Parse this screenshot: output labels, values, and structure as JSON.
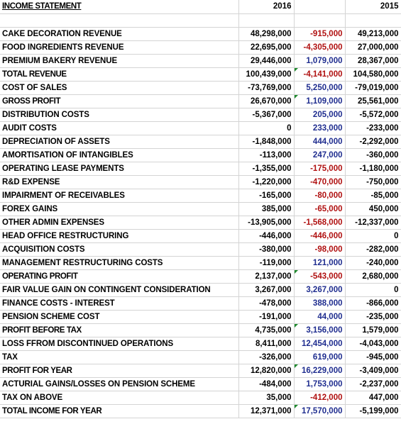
{
  "sheet": {
    "title": "INCOME STATEMENT",
    "col_2016": "2016",
    "col_2015": "2015",
    "rows": [
      {
        "label": "CAKE DECORATION REVENUE",
        "v2016": "48,298,000",
        "change": "-915,000",
        "v2015": "49,213,000",
        "bold": false
      },
      {
        "label": "FOOD INGREDIENTS REVENUE",
        "v2016": "22,695,000",
        "change": "-4,305,000",
        "v2015": "27,000,000",
        "bold": false
      },
      {
        "label": "PREMIUM BAKERY REVENUE",
        "v2016": "29,446,000",
        "change": "1,079,000",
        "v2015": "28,367,000",
        "bold": false
      },
      {
        "label": "TOTAL REVENUE",
        "v2016": "100,439,000",
        "change": "-4,141,000",
        "v2015": "104,580,000",
        "bold": true
      },
      {
        "label": "COST OF SALES",
        "v2016": "-73,769,000",
        "change": "5,250,000",
        "v2015": "-79,019,000",
        "bold": false
      },
      {
        "label": "GROSS PROFIT",
        "v2016": "26,670,000",
        "change": "1,109,000",
        "v2015": "25,561,000",
        "bold": true
      },
      {
        "label": "DISTRIBUTION COSTS",
        "v2016": "-5,367,000",
        "change": "205,000",
        "v2015": "-5,572,000",
        "bold": false
      },
      {
        "label": "AUDIT COSTS",
        "v2016": "0",
        "change": "233,000",
        "v2015": "-233,000",
        "bold": false
      },
      {
        "label": "DEPRECIATION OF ASSETS",
        "v2016": "-1,848,000",
        "change": "444,000",
        "v2015": "-2,292,000",
        "bold": false
      },
      {
        "label": "AMORTISATION OF INTANGIBLES",
        "v2016": "-113,000",
        "change": "247,000",
        "v2015": "-360,000",
        "bold": false
      },
      {
        "label": "OPERATING LEASE PAYMENTS",
        "v2016": "-1,355,000",
        "change": "-175,000",
        "v2015": "-1,180,000",
        "bold": false
      },
      {
        "label": "R&D EXPENSE",
        "v2016": "-1,220,000",
        "change": "-470,000",
        "v2015": "-750,000",
        "bold": false
      },
      {
        "label": "IMPAIRMENT OF RECEIVABLES",
        "v2016": "-165,000",
        "change": "-80,000",
        "v2015": "-85,000",
        "bold": false
      },
      {
        "label": "FOREX GAINS",
        "v2016": "385,000",
        "change": "-65,000",
        "v2015": "450,000",
        "bold": false
      },
      {
        "label": "OTHER ADMIN EXPENSES",
        "v2016": "-13,905,000",
        "change": "-1,568,000",
        "v2015": "-12,337,000",
        "bold": false
      },
      {
        "label": "HEAD OFFICE RESTRUCTURING",
        "v2016": "-446,000",
        "change": "-446,000",
        "v2015": "0",
        "bold": false
      },
      {
        "label": "ACQUISITION COSTS",
        "v2016": "-380,000",
        "change": "-98,000",
        "v2015": "-282,000",
        "bold": false
      },
      {
        "label": "MANAGEMENT RESTRUCTURING COSTS",
        "v2016": "-119,000",
        "change": "121,000",
        "v2015": "-240,000",
        "bold": false
      },
      {
        "label": "OPERATING PROFIT",
        "v2016": "2,137,000",
        "change": "-543,000",
        "v2015": "2,680,000",
        "bold": true
      },
      {
        "label": "FAIR VALUE GAIN ON CONTINGENT CONSIDERATION",
        "v2016": "3,267,000",
        "change": "3,267,000",
        "v2015": "0",
        "bold": false
      },
      {
        "label": "FINANCE COSTS - INTEREST",
        "v2016": "-478,000",
        "change": "388,000",
        "v2015": "-866,000",
        "bold": false
      },
      {
        "label": "PENSION SCHEME COST",
        "v2016": "-191,000",
        "change": "44,000",
        "v2015": "-235,000",
        "bold": false
      },
      {
        "label": "PROFIT BEFORE TAX",
        "v2016": "4,735,000",
        "change": "3,156,000",
        "v2015": "1,579,000",
        "bold": true
      },
      {
        "label": "LOSS FFROM DISCONTINUED OPERATIONS",
        "v2016": "8,411,000",
        "change": "12,454,000",
        "v2015": "-4,043,000",
        "bold": false
      },
      {
        "label": "TAX",
        "v2016": "-326,000",
        "change": "619,000",
        "v2015": "-945,000",
        "bold": false
      },
      {
        "label": "PROFIT FOR YEAR",
        "v2016": "12,820,000",
        "change": "16,229,000",
        "v2015": "-3,409,000",
        "bold": true
      },
      {
        "label": "ACTURIAL GAINS/LOSSES ON PENSION SCHEME",
        "v2016": "-484,000",
        "change": "1,753,000",
        "v2015": "-2,237,000",
        "bold": false
      },
      {
        "label": "TAX ON ABOVE",
        "v2016": "35,000",
        "change": "-412,000",
        "v2015": "447,000",
        "bold": false
      },
      {
        "label": "TOTAL INCOME FOR YEAR",
        "v2016": "12,371,000",
        "change": "17,570,000",
        "v2015": "-5,199,000",
        "bold": true
      }
    ],
    "marker_rows": [
      "TOTAL REVENUE",
      "GROSS PROFIT",
      "OPERATING PROFIT",
      "PROFIT BEFORE TAX",
      "PROFIT FOR YEAR",
      "TOTAL INCOME FOR YEAR"
    ]
  },
  "colors": {
    "positive_change": "#1f2d8f",
    "negative_change": "#b01010",
    "gridline": "#d4d4d4",
    "formula_marker": "#1f8a2e"
  }
}
